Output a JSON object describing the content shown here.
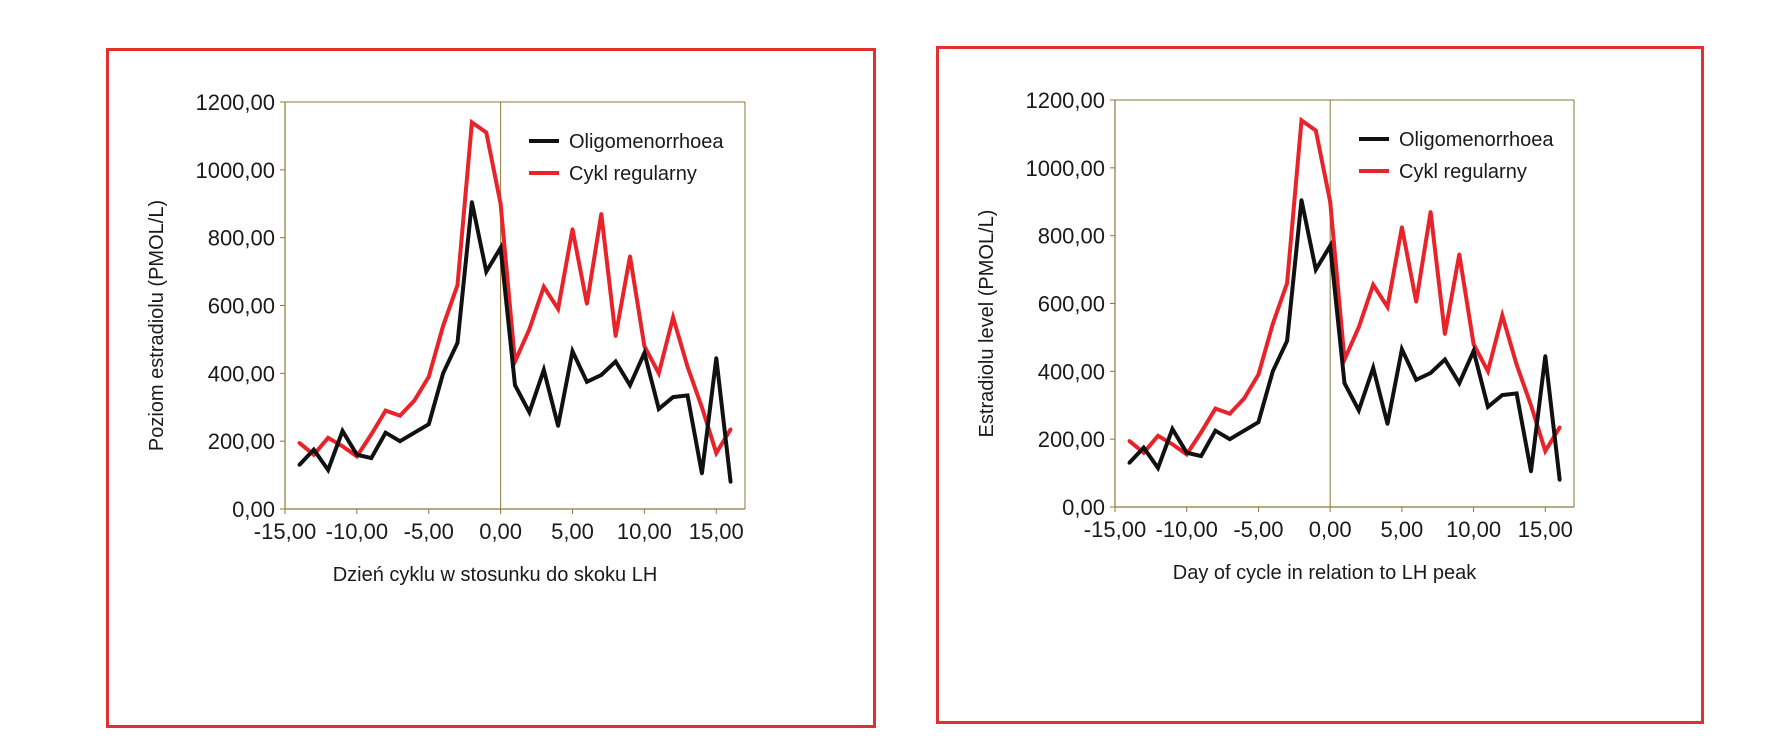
{
  "colors": {
    "border": "#e03030",
    "axis": "#8a7a3a",
    "oligomenorrhoea": "#111111",
    "regular": "#e8232a"
  },
  "chart_data": [
    {
      "type": "line",
      "xlabel": "Dzień cyklu w stosunku do skoku LH",
      "ylabel": "Poziom estradiolu (PMOL/L)",
      "xlim": [
        -15,
        17
      ],
      "ylim": [
        0,
        1200
      ],
      "grid": false,
      "legend_position": "top-right",
      "x_ticks": [
        "-15,00",
        "-10,00",
        "-5,00",
        "0,00",
        "5,00",
        "10,00",
        "15,00"
      ],
      "y_ticks": [
        "0,00",
        "200,00",
        "400,00",
        "600,00",
        "800,00",
        "1000,00",
        "1200,00"
      ],
      "series": [
        {
          "name": "Oligomenorrhoea",
          "color": "#111111",
          "x": [
            -14,
            -13,
            -12,
            -11,
            -10,
            -9,
            -8,
            -7,
            -6,
            -5,
            -4,
            -3,
            -2,
            -1,
            0,
            1,
            2,
            3,
            4,
            5,
            6,
            7,
            8,
            9,
            10,
            11,
            12,
            13,
            14,
            15,
            16
          ],
          "y": [
            130,
            175,
            115,
            230,
            160,
            150,
            225,
            200,
            225,
            250,
            400,
            490,
            905,
            700,
            770,
            365,
            285,
            410,
            245,
            465,
            375,
            395,
            435,
            365,
            460,
            295,
            330,
            335,
            105,
            445,
            80
          ]
        },
        {
          "name": "Cykl regularny",
          "color": "#e8232a",
          "x": [
            -14,
            -13,
            -12,
            -11,
            -10,
            -9,
            -8,
            -7,
            -6,
            -5,
            -4,
            -3,
            -2,
            -1,
            0,
            1,
            2,
            3,
            4,
            5,
            6,
            7,
            8,
            9,
            10,
            11,
            12,
            13,
            14,
            15,
            16
          ],
          "y": [
            195,
            160,
            210,
            185,
            155,
            220,
            290,
            275,
            320,
            390,
            540,
            660,
            1140,
            1110,
            900,
            435,
            530,
            655,
            590,
            825,
            605,
            870,
            510,
            745,
            480,
            400,
            565,
            420,
            300,
            165,
            235
          ]
        }
      ]
    },
    {
      "type": "line",
      "xlabel": "Day of cycle in relation to LH peak",
      "ylabel": "Estradiolu  level (PMOL/L)",
      "xlim": [
        -15,
        17
      ],
      "ylim": [
        0,
        1200
      ],
      "grid": false,
      "legend_position": "top-right",
      "x_ticks": [
        "-15,00",
        "-10,00",
        "-5,00",
        "0,00",
        "5,00",
        "10,00",
        "15,00"
      ],
      "y_ticks": [
        "0,00",
        "200,00",
        "400,00",
        "600,00",
        "800,00",
        "1000,00",
        "1200,00"
      ],
      "series": [
        {
          "name": "Oligomenorrhoea",
          "color": "#111111",
          "x": [
            -14,
            -13,
            -12,
            -11,
            -10,
            -9,
            -8,
            -7,
            -6,
            -5,
            -4,
            -3,
            -2,
            -1,
            0,
            1,
            2,
            3,
            4,
            5,
            6,
            7,
            8,
            9,
            10,
            11,
            12,
            13,
            14,
            15,
            16
          ],
          "y": [
            130,
            175,
            115,
            230,
            160,
            150,
            225,
            200,
            225,
            250,
            400,
            490,
            905,
            700,
            770,
            365,
            285,
            410,
            245,
            465,
            375,
            395,
            435,
            365,
            460,
            295,
            330,
            335,
            105,
            445,
            80
          ]
        },
        {
          "name": "Cykl regularny",
          "color": "#e8232a",
          "x": [
            -14,
            -13,
            -12,
            -11,
            -10,
            -9,
            -8,
            -7,
            -6,
            -5,
            -4,
            -3,
            -2,
            -1,
            0,
            1,
            2,
            3,
            4,
            5,
            6,
            7,
            8,
            9,
            10,
            11,
            12,
            13,
            14,
            15,
            16
          ],
          "y": [
            195,
            160,
            210,
            185,
            155,
            220,
            290,
            275,
            320,
            390,
            540,
            660,
            1140,
            1110,
            900,
            435,
            530,
            655,
            590,
            825,
            605,
            870,
            510,
            745,
            480,
            400,
            565,
            420,
            300,
            165,
            235
          ]
        }
      ]
    }
  ]
}
